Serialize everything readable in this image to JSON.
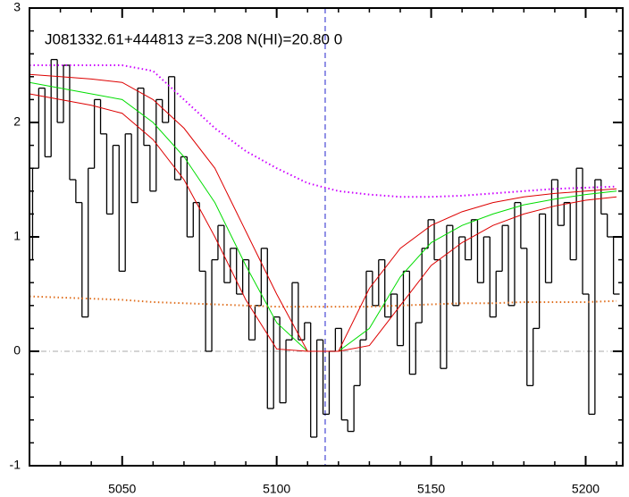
{
  "chart_data": {
    "type": "line",
    "title": "J081332.61+444813 z=3.208 N(HI)=20.80 0",
    "xlim": [
      5020,
      5212
    ],
    "ylim": [
      -1,
      3
    ],
    "xticks": [
      5050,
      5100,
      5150,
      5200
    ],
    "yticks": [
      -1,
      0,
      1,
      2,
      3
    ],
    "vline": 5115.7,
    "hline": 0,
    "series": [
      {
        "style": "step",
        "color": "#000000",
        "x": [
          5020,
          5022,
          5024,
          5026,
          5028,
          5030,
          5032,
          5034,
          5036,
          5038,
          5040,
          5042,
          5044,
          5046,
          5048,
          5050,
          5052,
          5054,
          5056,
          5058,
          5060,
          5062,
          5064,
          5066,
          5068,
          5070,
          5072,
          5074,
          5076,
          5078,
          5080,
          5082,
          5084,
          5086,
          5088,
          5090,
          5092,
          5094,
          5096,
          5098,
          5100,
          5102,
          5104,
          5106,
          5108,
          5110,
          5112,
          5114,
          5116,
          5118,
          5120,
          5122,
          5124,
          5126,
          5128,
          5130,
          5132,
          5134,
          5136,
          5138,
          5140,
          5142,
          5144,
          5146,
          5148,
          5150,
          5152,
          5154,
          5156,
          5158,
          5160,
          5162,
          5164,
          5166,
          5168,
          5170,
          5172,
          5174,
          5176,
          5178,
          5180,
          5182,
          5184,
          5186,
          5188,
          5190,
          5192,
          5194,
          5196,
          5198,
          5200,
          5202,
          5204,
          5206,
          5208,
          5210
        ],
        "values": [
          0.8,
          1.6,
          2.3,
          1.7,
          2.55,
          2.0,
          2.5,
          1.5,
          1.3,
          0.3,
          1.6,
          2.2,
          1.9,
          1.2,
          1.8,
          0.7,
          1.9,
          1.3,
          2.3,
          1.8,
          1.4,
          2.2,
          2.0,
          2.4,
          1.5,
          1.7,
          1.0,
          1.3,
          0.7,
          0.0,
          0.8,
          1.1,
          0.6,
          0.9,
          0.5,
          0.8,
          0.1,
          0.4,
          0.9,
          -0.5,
          0.3,
          -0.45,
          0.1,
          0.6,
          0.1,
          0.25,
          -0.75,
          0.1,
          -0.55,
          0.0,
          0.2,
          -0.6,
          -0.7,
          -0.3,
          0.1,
          0.7,
          0.4,
          0.8,
          0.3,
          0.5,
          0.05,
          0.7,
          -0.2,
          0.25,
          0.9,
          1.15,
          0.8,
          -0.15,
          1.1,
          0.4,
          1.0,
          0.8,
          1.15,
          0.6,
          1.0,
          0.3,
          0.7,
          1.1,
          0.4,
          1.3,
          0.9,
          -0.3,
          0.2,
          1.2,
          0.6,
          1.5,
          1.1,
          1.3,
          0.8,
          1.6,
          0.5,
          -0.55,
          1.5,
          1.2,
          1.0,
          0.5
        ]
      },
      {
        "style": "dotted",
        "color": "#e07020",
        "x": [
          5020,
          5030,
          5040,
          5050,
          5060,
          5070,
          5080,
          5090,
          5100,
          5110,
          5120,
          5130,
          5140,
          5150,
          5160,
          5170,
          5180,
          5190,
          5200,
          5210
        ],
        "values": [
          0.48,
          0.47,
          0.46,
          0.45,
          0.43,
          0.42,
          0.41,
          0.4,
          0.39,
          0.39,
          0.39,
          0.39,
          0.4,
          0.41,
          0.42,
          0.42,
          0.43,
          0.43,
          0.43,
          0.44
        ]
      },
      {
        "style": "dotted",
        "color": "#cc00ff",
        "x": [
          5020,
          5030,
          5040,
          5050,
          5060,
          5070,
          5080,
          5090,
          5100,
          5110,
          5120,
          5130,
          5140,
          5150,
          5160,
          5170,
          5180,
          5190,
          5200,
          5210
        ],
        "values": [
          2.5,
          2.5,
          2.5,
          2.5,
          2.45,
          2.2,
          1.95,
          1.75,
          1.6,
          1.47,
          1.4,
          1.37,
          1.35,
          1.35,
          1.36,
          1.38,
          1.4,
          1.42,
          1.43,
          1.44
        ]
      },
      {
        "style": "solid",
        "color": "#00dd00",
        "x": [
          5020,
          5030,
          5040,
          5050,
          5060,
          5070,
          5080,
          5090,
          5100,
          5110,
          5120,
          5130,
          5140,
          5150,
          5160,
          5170,
          5180,
          5190,
          5200,
          5210
        ],
        "values": [
          2.35,
          2.3,
          2.25,
          2.2,
          2.0,
          1.7,
          1.3,
          0.75,
          0.25,
          0,
          0,
          0.2,
          0.65,
          0.95,
          1.1,
          1.2,
          1.28,
          1.33,
          1.37,
          1.4
        ]
      },
      {
        "style": "solid",
        "color": "#dd0000",
        "x": [
          5020,
          5030,
          5040,
          5050,
          5060,
          5070,
          5080,
          5090,
          5100,
          5110,
          5120,
          5130,
          5140,
          5150,
          5160,
          5170,
          5180,
          5190,
          5200,
          5210
        ],
        "values": [
          2.42,
          2.4,
          2.38,
          2.35,
          2.2,
          1.95,
          1.6,
          1.05,
          0.5,
          0,
          0,
          0.55,
          0.9,
          1.1,
          1.22,
          1.3,
          1.35,
          1.38,
          1.4,
          1.42
        ]
      },
      {
        "style": "solid",
        "color": "#dd0000",
        "x": [
          5020,
          5030,
          5040,
          5050,
          5060,
          5070,
          5080,
          5090,
          5100,
          5110,
          5120,
          5130,
          5140,
          5150,
          5160,
          5170,
          5180,
          5190,
          5200,
          5210
        ],
        "values": [
          2.25,
          2.2,
          2.15,
          2.08,
          1.85,
          1.5,
          1.0,
          0.45,
          0.02,
          0,
          0,
          0.05,
          0.4,
          0.75,
          0.95,
          1.1,
          1.2,
          1.27,
          1.32,
          1.35
        ]
      }
    ]
  }
}
